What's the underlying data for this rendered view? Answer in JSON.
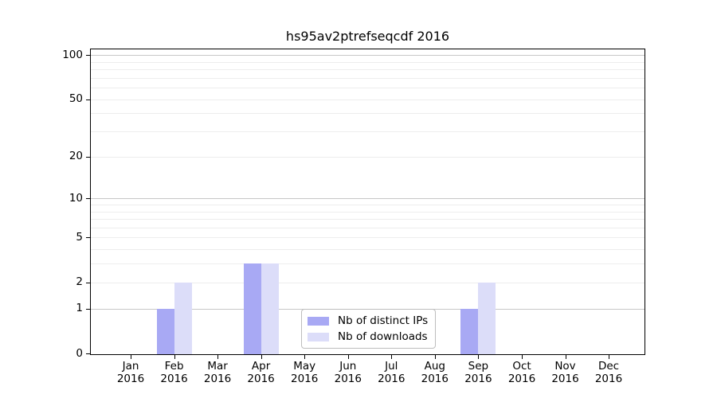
{
  "title": "hs95av2ptrefseqcdf 2016",
  "colors": {
    "bar_distinct_ips": "#a8a9f4",
    "bar_downloads": "#dcddf9",
    "grid_minor": "#ededed",
    "grid_decade": "#c7c7c7",
    "axis": "#000000",
    "legend_border": "#bdbdbd"
  },
  "legend": {
    "items": [
      {
        "label": "Nb of distinct IPs"
      },
      {
        "label": "Nb of downloads"
      }
    ]
  },
  "chart_data": {
    "type": "bar",
    "title": "hs95av2ptrefseqcdf 2016",
    "y_scale": "log10(1+x)",
    "ylim": [
      0,
      100
    ],
    "y_ticks": [
      0,
      1,
      2,
      5,
      10,
      20,
      50,
      100
    ],
    "y_minor_gridlines": [
      2,
      3,
      4,
      5,
      6,
      7,
      8,
      9,
      20,
      30,
      40,
      50,
      60,
      70,
      80,
      90
    ],
    "y_decade_gridlines": [
      1,
      10,
      100
    ],
    "categories": [
      "Jan",
      "Feb",
      "Mar",
      "Apr",
      "May",
      "Jun",
      "Jul",
      "Aug",
      "Sep",
      "Oct",
      "Nov",
      "Dec"
    ],
    "year": "2016",
    "series": [
      {
        "name": "Nb of distinct IPs",
        "key": "distinct-ips",
        "color": "#a8a9f4",
        "values": [
          0,
          1,
          0,
          3,
          0,
          0,
          0,
          0,
          1,
          0,
          0,
          0
        ]
      },
      {
        "name": "Nb of downloads",
        "key": "downloads",
        "color": "#dcddf9",
        "values": [
          0,
          2,
          0,
          3,
          0,
          0,
          0,
          0,
          2,
          0,
          0,
          0
        ]
      }
    ],
    "legend_position": "inside-bottom-center",
    "grid": "on"
  }
}
